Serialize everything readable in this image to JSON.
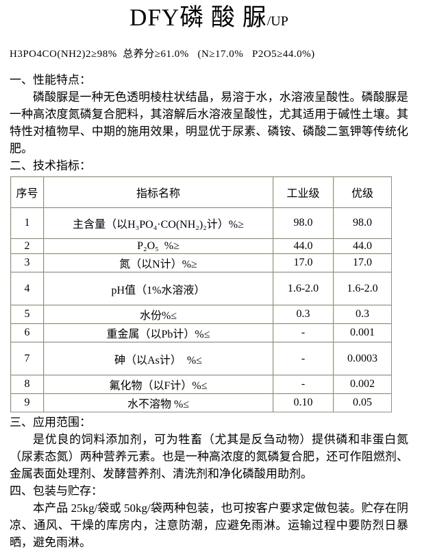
{
  "header": {
    "title_main": "DFY磷 酸 脲",
    "title_suffix": "/UP",
    "formula_line": "H3PO4CO(NH2)2≥98%  总养分≥61.0%   (N≥17.0%   P2O5≥44.0%)"
  },
  "sections": {
    "s1": {
      "heading": "一、性能特点：",
      "body": "磷酸脲是一种无色透明棱柱状结晶，易溶于水，水溶液呈酸性。磷酸脲是一种高浓度氮磷复合肥料，其溶解后水溶液呈酸性，尤其适用于碱性土壤。其特性对植物早、中期的施用效果，明显优于尿素、磷铵、磷酸二氢钾等传统化肥。"
    },
    "s2": {
      "heading": "二、技术指标："
    },
    "s3": {
      "heading": "三、应用范围：",
      "body": "是优良的饲料添加剂，可为牲畜（尤其是反刍动物）提供磷和非蛋白氮（尿素态氮）两种营养元素。也是一种高浓度的氮磷复合肥，还可作阻燃剂、金属表面处理剂、发酵营养剂、清洗剂和净化磷酸用助剂。"
    },
    "s4": {
      "heading": "四、包装与贮存：",
      "body": "本产品 25kg/袋或 50kg/袋两种包装，也可按客户要求定做包装。贮存在阴凉、通风、干燥的库房内，注意防潮，应避免雨淋。运输过程中要防烈日暴晒，避免雨淋。"
    }
  },
  "table": {
    "headers": [
      "序号",
      "指标名称",
      "工业级",
      "优级"
    ],
    "rows": [
      [
        "1",
        "主含量（以H₃PO₄·CO(NH₂)₂计）%≥",
        "98.0",
        "98.0"
      ],
      [
        "2",
        "P₂O₅  %≥",
        "44.0",
        "44.0"
      ],
      [
        "3",
        "氮（以N计）%≥",
        "17.0",
        "17.0"
      ],
      [
        "4",
        "pH值（1%水溶液）",
        "1.6-2.0",
        "1.6-2.0"
      ],
      [
        "5",
        "水份%≤",
        "0.3",
        "0.3"
      ],
      [
        "6",
        "重金属（以Pb计）%≤",
        "-",
        "0.001"
      ],
      [
        "7",
        "砷（以As计）  %≤",
        "-",
        "0.0003"
      ],
      [
        "8",
        "氟化物（以F计）%≤",
        "-",
        "0.002"
      ],
      [
        "9",
        "水不溶物 %≤",
        "0.10",
        "0.05"
      ]
    ]
  }
}
